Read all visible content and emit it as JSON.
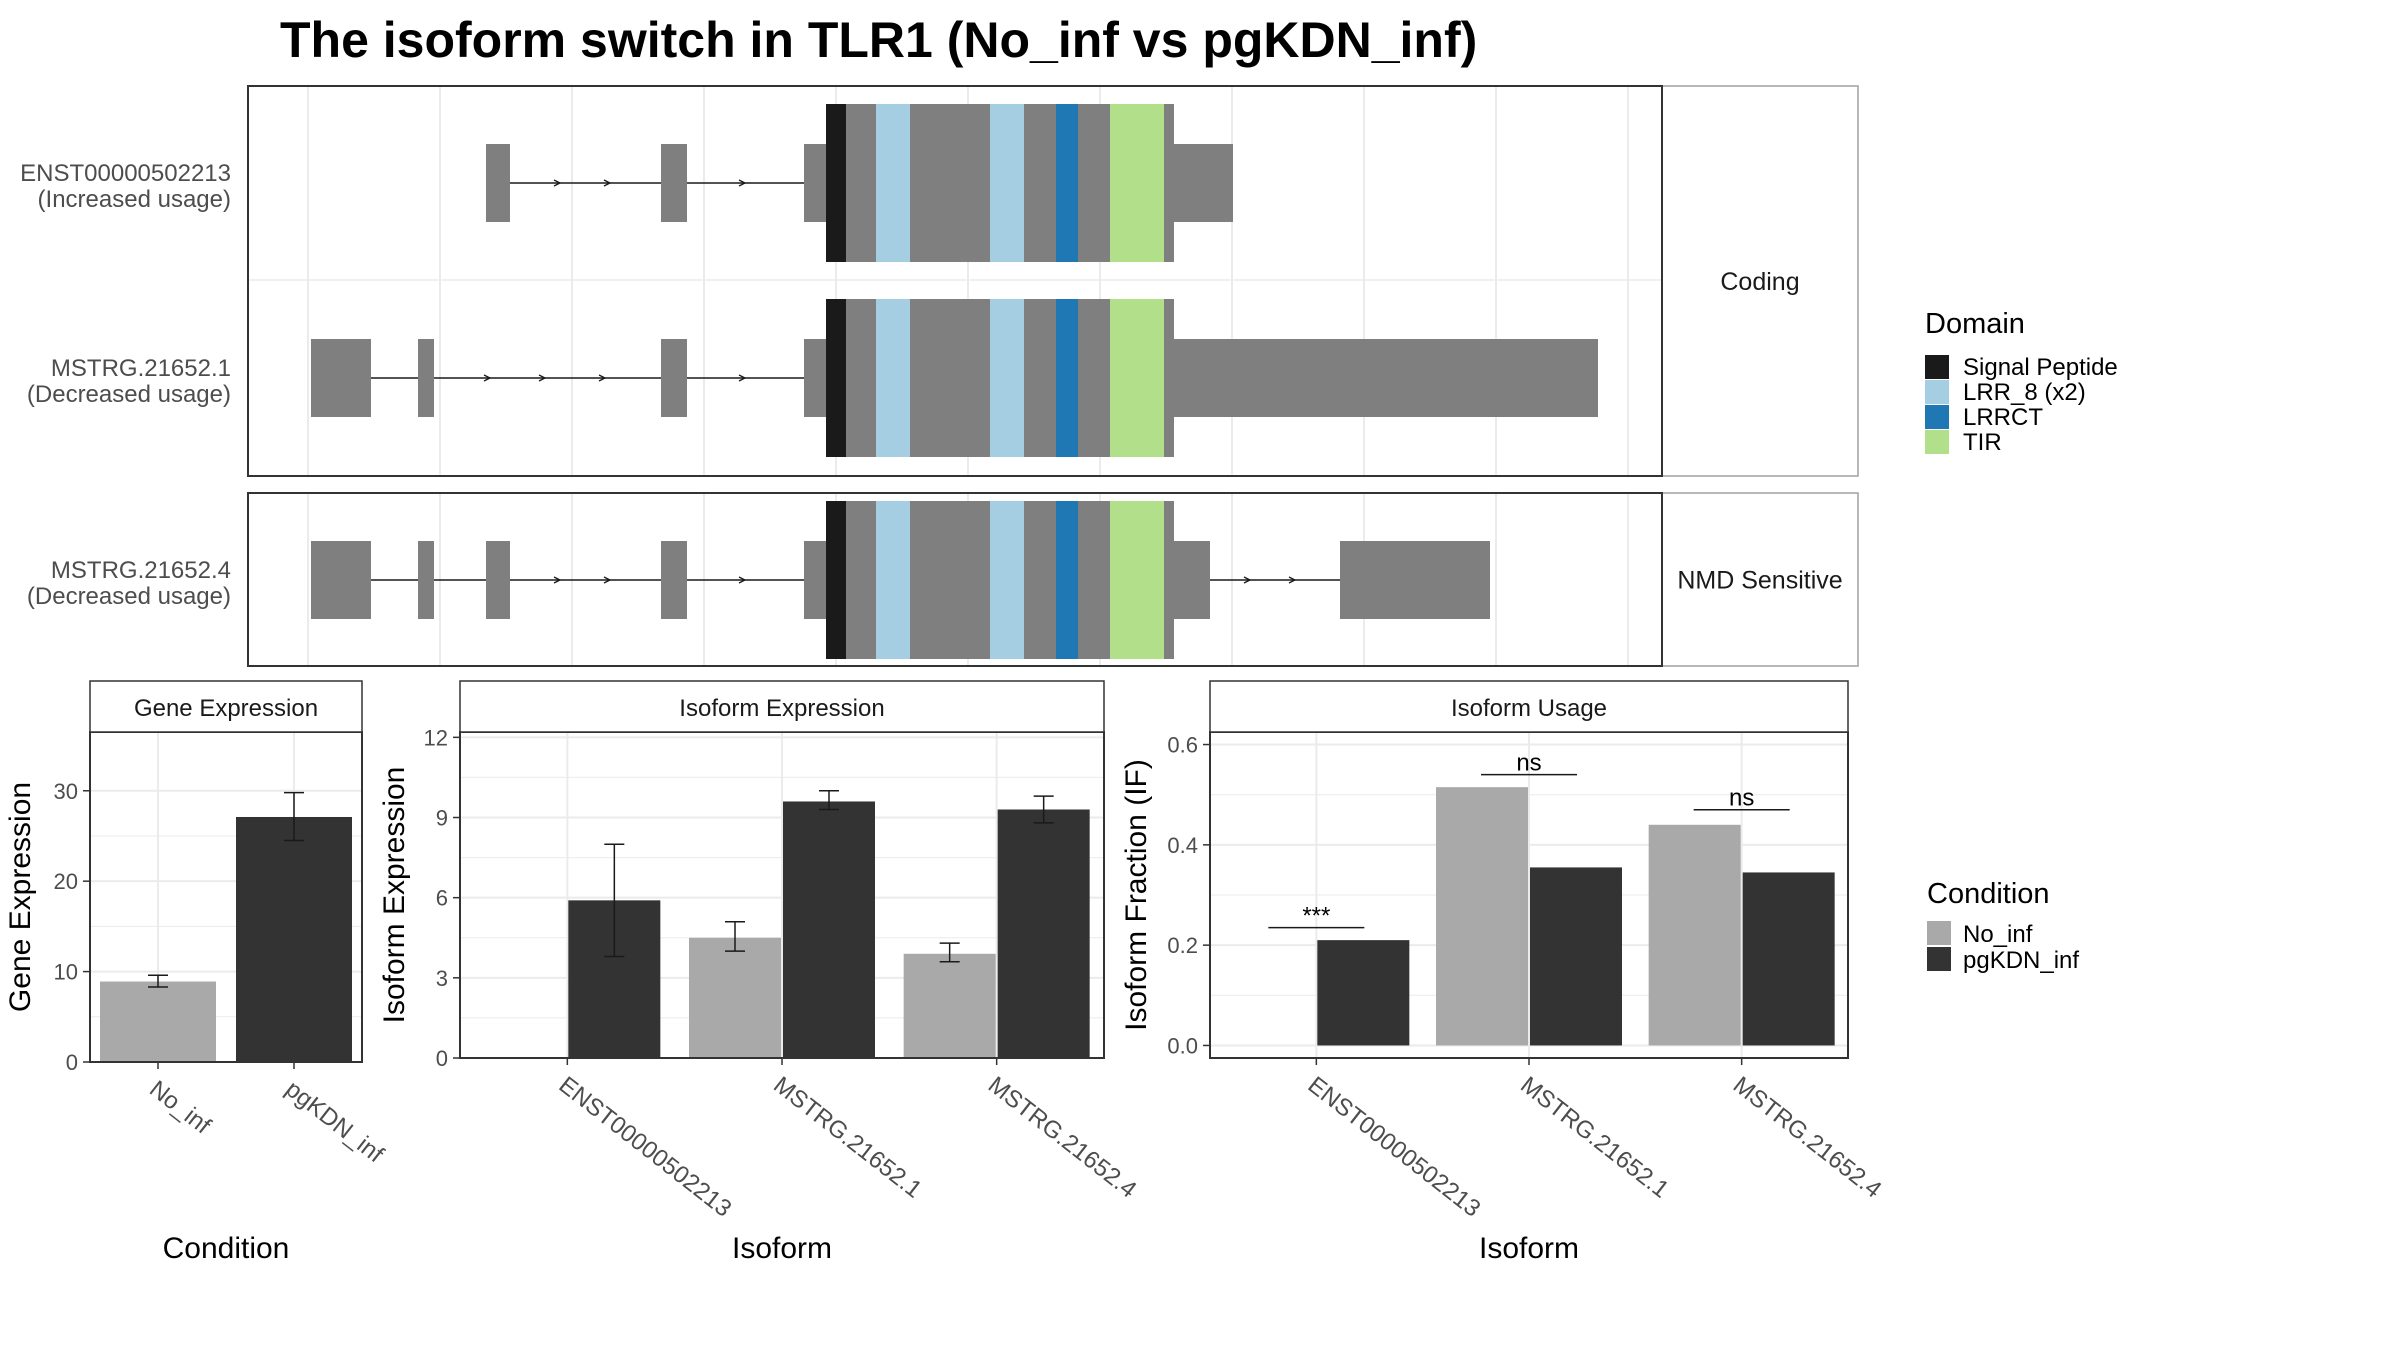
{
  "title": "The isoform switch in TLR1 (No_inf vs pgKDN_inf)",
  "colors": {
    "exon": "#7f7f7f",
    "signal_peptide": "#1a1a1a",
    "lrr8": "#a6cee3",
    "lrrct": "#1f78b4",
    "tir": "#b2df8a",
    "no_inf": "#a9a9a9",
    "pgkdn_inf": "#333333",
    "grid": "#ebebeb",
    "panel_border": "#333333",
    "strip_fill": "#ffffff"
  },
  "transcripts": {
    "strip_labels": [
      "Coding",
      "NMD Sensitive"
    ],
    "rows": [
      {
        "id": "ENST00000502213",
        "usage": "(Increased usage)",
        "group": "Coding"
      },
      {
        "id": "MSTRG.21652.1",
        "usage": "(Decreased usage)",
        "group": "Coding"
      },
      {
        "id": "MSTRG.21652.4",
        "usage": "(Decreased usage)",
        "group": "NMD Sensitive"
      }
    ]
  },
  "domain_legend": {
    "title": "Domain",
    "items": [
      {
        "label": "Signal Peptide",
        "color": "#1a1a1a"
      },
      {
        "label": "LRR_8 (x2)",
        "color": "#a6cee3"
      },
      {
        "label": "LRRCT",
        "color": "#1f78b4"
      },
      {
        "label": "TIR",
        "color": "#b2df8a"
      }
    ]
  },
  "condition_legend": {
    "title": "Condition",
    "items": [
      {
        "label": "No_inf",
        "color": "#a9a9a9"
      },
      {
        "label": "pgKDN_inf",
        "color": "#333333"
      }
    ]
  },
  "chart_data": [
    {
      "type": "bar",
      "strip": "Gene Expression",
      "xlabel": "Condition",
      "ylabel": "Gene Expression",
      "ylim": [
        0,
        36.5
      ],
      "yticks": [
        0,
        10,
        20,
        30
      ],
      "categories": [
        "No_inf",
        "pgKDN_inf"
      ],
      "values": [
        8.9,
        27.1
      ],
      "errors": [
        [
          8.3,
          9.6
        ],
        [
          24.5,
          29.8
        ]
      ],
      "grid": true
    },
    {
      "type": "bar",
      "strip": "Isoform Expression",
      "xlabel": "Isoform",
      "ylabel": "Isoform Expression",
      "ylim": [
        0,
        12.2
      ],
      "yticks": [
        0,
        3,
        6,
        9,
        12
      ],
      "categories": [
        "ENST00000502213",
        "MSTRG.21652.1",
        "MSTRG.21652.4"
      ],
      "series": [
        {
          "name": "No_inf",
          "values": [
            0,
            4.5,
            3.9
          ],
          "errors": [
            [
              0,
              0
            ],
            [
              4.0,
              5.1
            ],
            [
              3.6,
              4.3
            ]
          ]
        },
        {
          "name": "pgKDN_inf",
          "values": [
            5.9,
            9.6,
            9.3
          ],
          "errors": [
            [
              3.8,
              8.0
            ],
            [
              9.3,
              10.0
            ],
            [
              8.8,
              9.8
            ]
          ]
        }
      ],
      "grid": true
    },
    {
      "type": "bar",
      "strip": "Isoform Usage",
      "xlabel": "Isoform",
      "ylabel": "Isoform Fraction (IF)",
      "ylim": [
        -0.025,
        0.625
      ],
      "yticks": [
        0.0,
        0.2,
        0.4,
        0.6
      ],
      "categories": [
        "ENST00000502213",
        "MSTRG.21652.1",
        "MSTRG.21652.4"
      ],
      "series": [
        {
          "name": "No_inf",
          "values": [
            0,
            0.515,
            0.44
          ]
        },
        {
          "name": "pgKDN_inf",
          "values": [
            0.21,
            0.355,
            0.345
          ]
        }
      ],
      "annotations": [
        "***",
        "ns",
        "ns"
      ],
      "annotation_levels": [
        0.235,
        0.54,
        0.47
      ],
      "grid": true
    }
  ]
}
